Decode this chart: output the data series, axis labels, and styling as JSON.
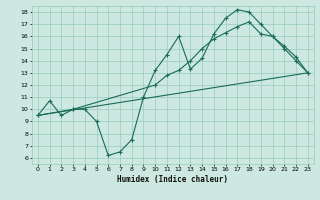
{
  "xlabel": "Humidex (Indice chaleur)",
  "bg_color": "#cce8e0",
  "grid_color": "#99ccbb",
  "line_color": "#1a6b5a",
  "xlim": [
    -0.5,
    23.5
  ],
  "ylim": [
    5.5,
    18.5
  ],
  "xticks": [
    0,
    1,
    2,
    3,
    4,
    5,
    6,
    7,
    8,
    9,
    10,
    11,
    12,
    13,
    14,
    15,
    16,
    17,
    18,
    19,
    20,
    21,
    22,
    23
  ],
  "yticks": [
    6,
    7,
    8,
    9,
    10,
    11,
    12,
    13,
    14,
    15,
    16,
    17,
    18
  ],
  "line1_x": [
    0,
    1,
    2,
    3,
    4,
    5,
    6,
    7,
    8,
    9,
    10,
    11,
    12,
    13,
    14,
    15,
    16,
    17,
    18,
    19,
    20,
    21,
    22,
    23
  ],
  "line1_y": [
    9.5,
    10.7,
    9.5,
    10.0,
    10.0,
    9.0,
    6.2,
    6.5,
    7.5,
    11.0,
    13.2,
    14.5,
    16.0,
    13.3,
    14.2,
    16.2,
    17.5,
    18.2,
    18.0,
    17.0,
    16.0,
    15.0,
    14.0,
    13.0
  ],
  "line2_x": [
    0,
    3,
    10,
    11,
    12,
    13,
    14,
    15,
    16,
    17,
    18,
    19,
    20,
    21,
    22,
    23
  ],
  "line2_y": [
    9.5,
    10.0,
    12.0,
    12.8,
    13.2,
    14.0,
    15.0,
    15.8,
    16.3,
    16.8,
    17.2,
    16.2,
    16.0,
    15.2,
    14.3,
    13.0
  ],
  "line3_x": [
    0,
    23
  ],
  "line3_y": [
    9.5,
    13.0
  ]
}
